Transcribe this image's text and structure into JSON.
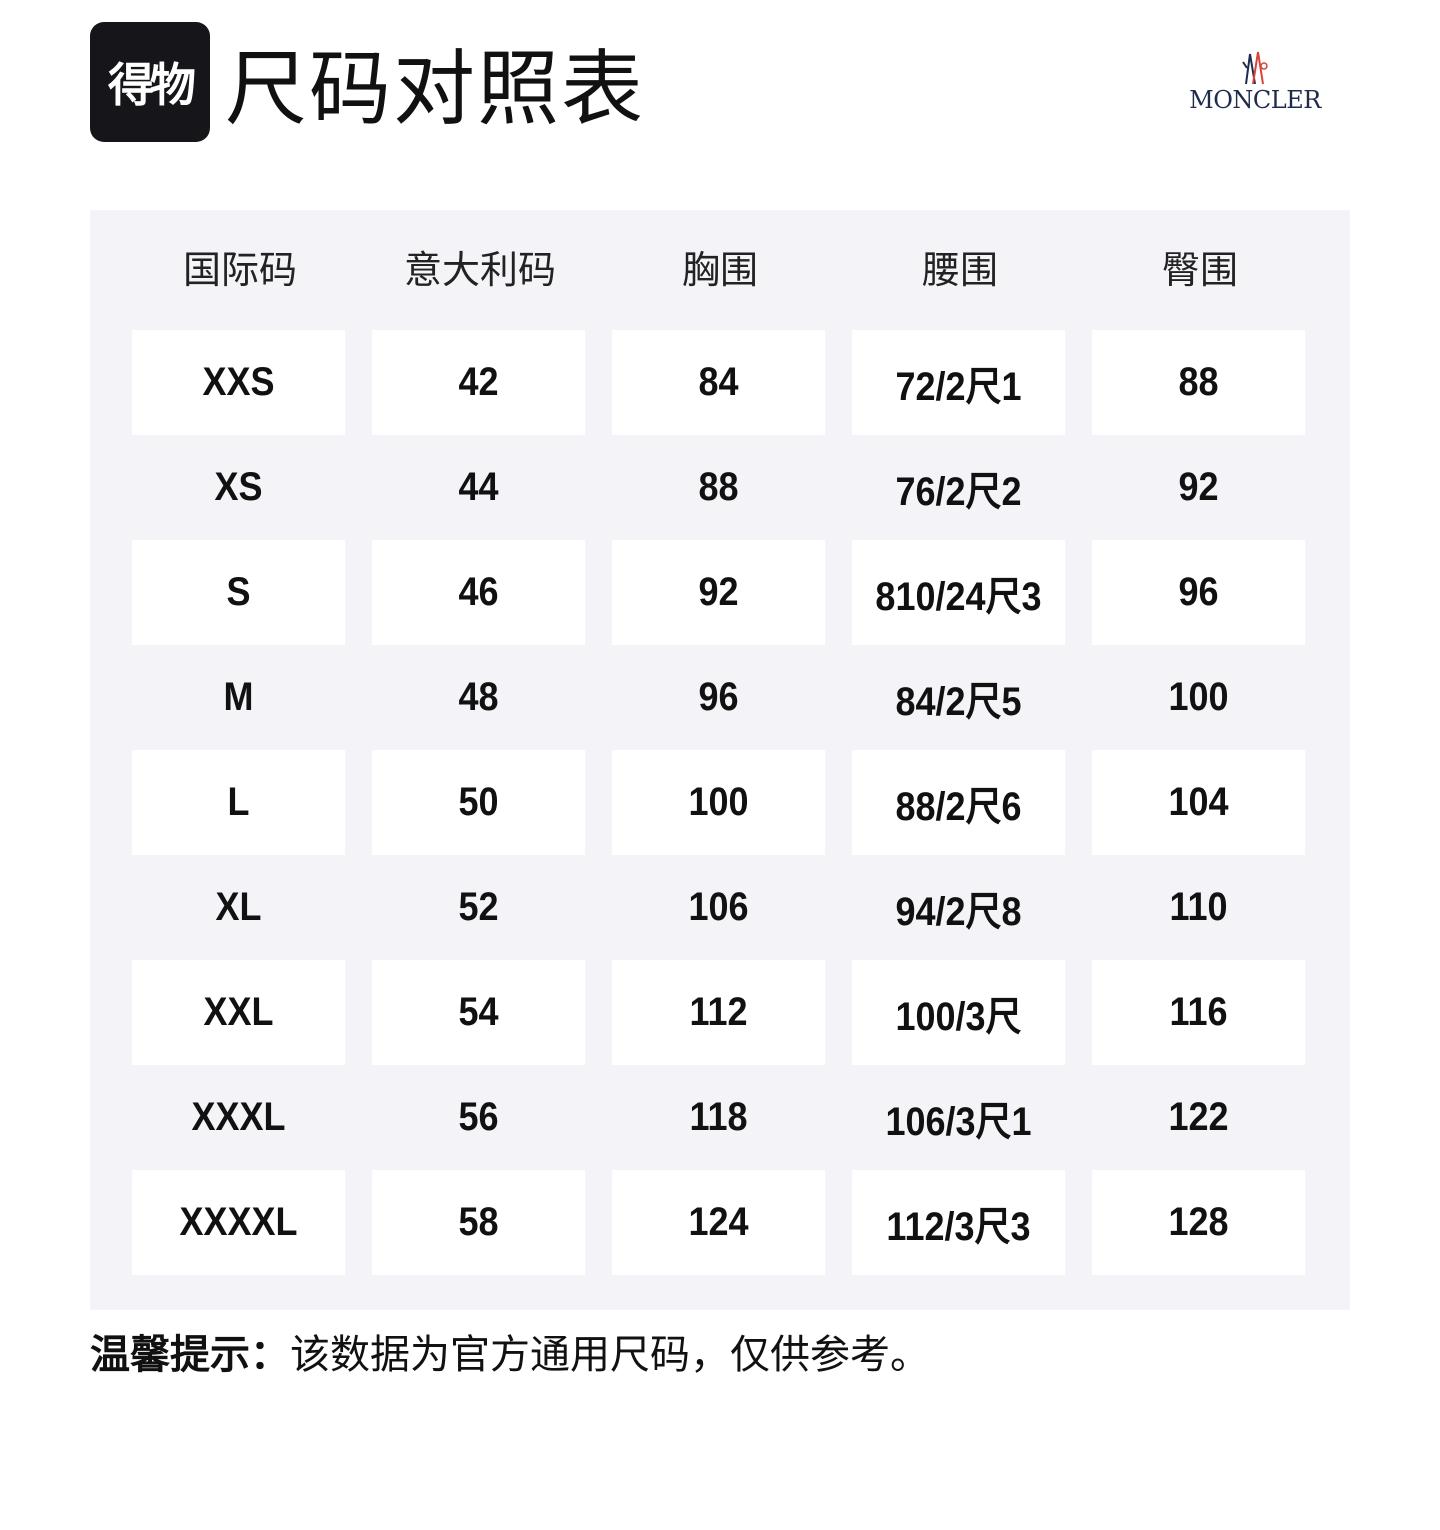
{
  "header": {
    "logo": "得物",
    "title": "尺码对照表",
    "brand": "MONCLER"
  },
  "table": {
    "columns": [
      "国际码",
      "意大利码",
      "胸围",
      "腰围",
      "臀围"
    ],
    "rows": [
      [
        "XXS",
        "42",
        "84",
        "72/2尺1",
        "88"
      ],
      [
        "XS",
        "44",
        "88",
        "76/2尺2",
        "92"
      ],
      [
        "S",
        "46",
        "92",
        "810/24尺3",
        "96"
      ],
      [
        "M",
        "48",
        "96",
        "84/2尺5",
        "100"
      ],
      [
        "L",
        "50",
        "100",
        "88/2尺6",
        "104"
      ],
      [
        "XL",
        "52",
        "106",
        "94/2尺8",
        "110"
      ],
      [
        "XXL",
        "54",
        "112",
        "100/3尺",
        "116"
      ],
      [
        "XXXL",
        "56",
        "118",
        "106/3尺1",
        "122"
      ],
      [
        "XXXXL",
        "58",
        "124",
        "112/3尺3",
        "128"
      ]
    ]
  },
  "note": {
    "label": "温馨提示：",
    "text": "该数据为官方通用尺码，仅供参考。"
  }
}
